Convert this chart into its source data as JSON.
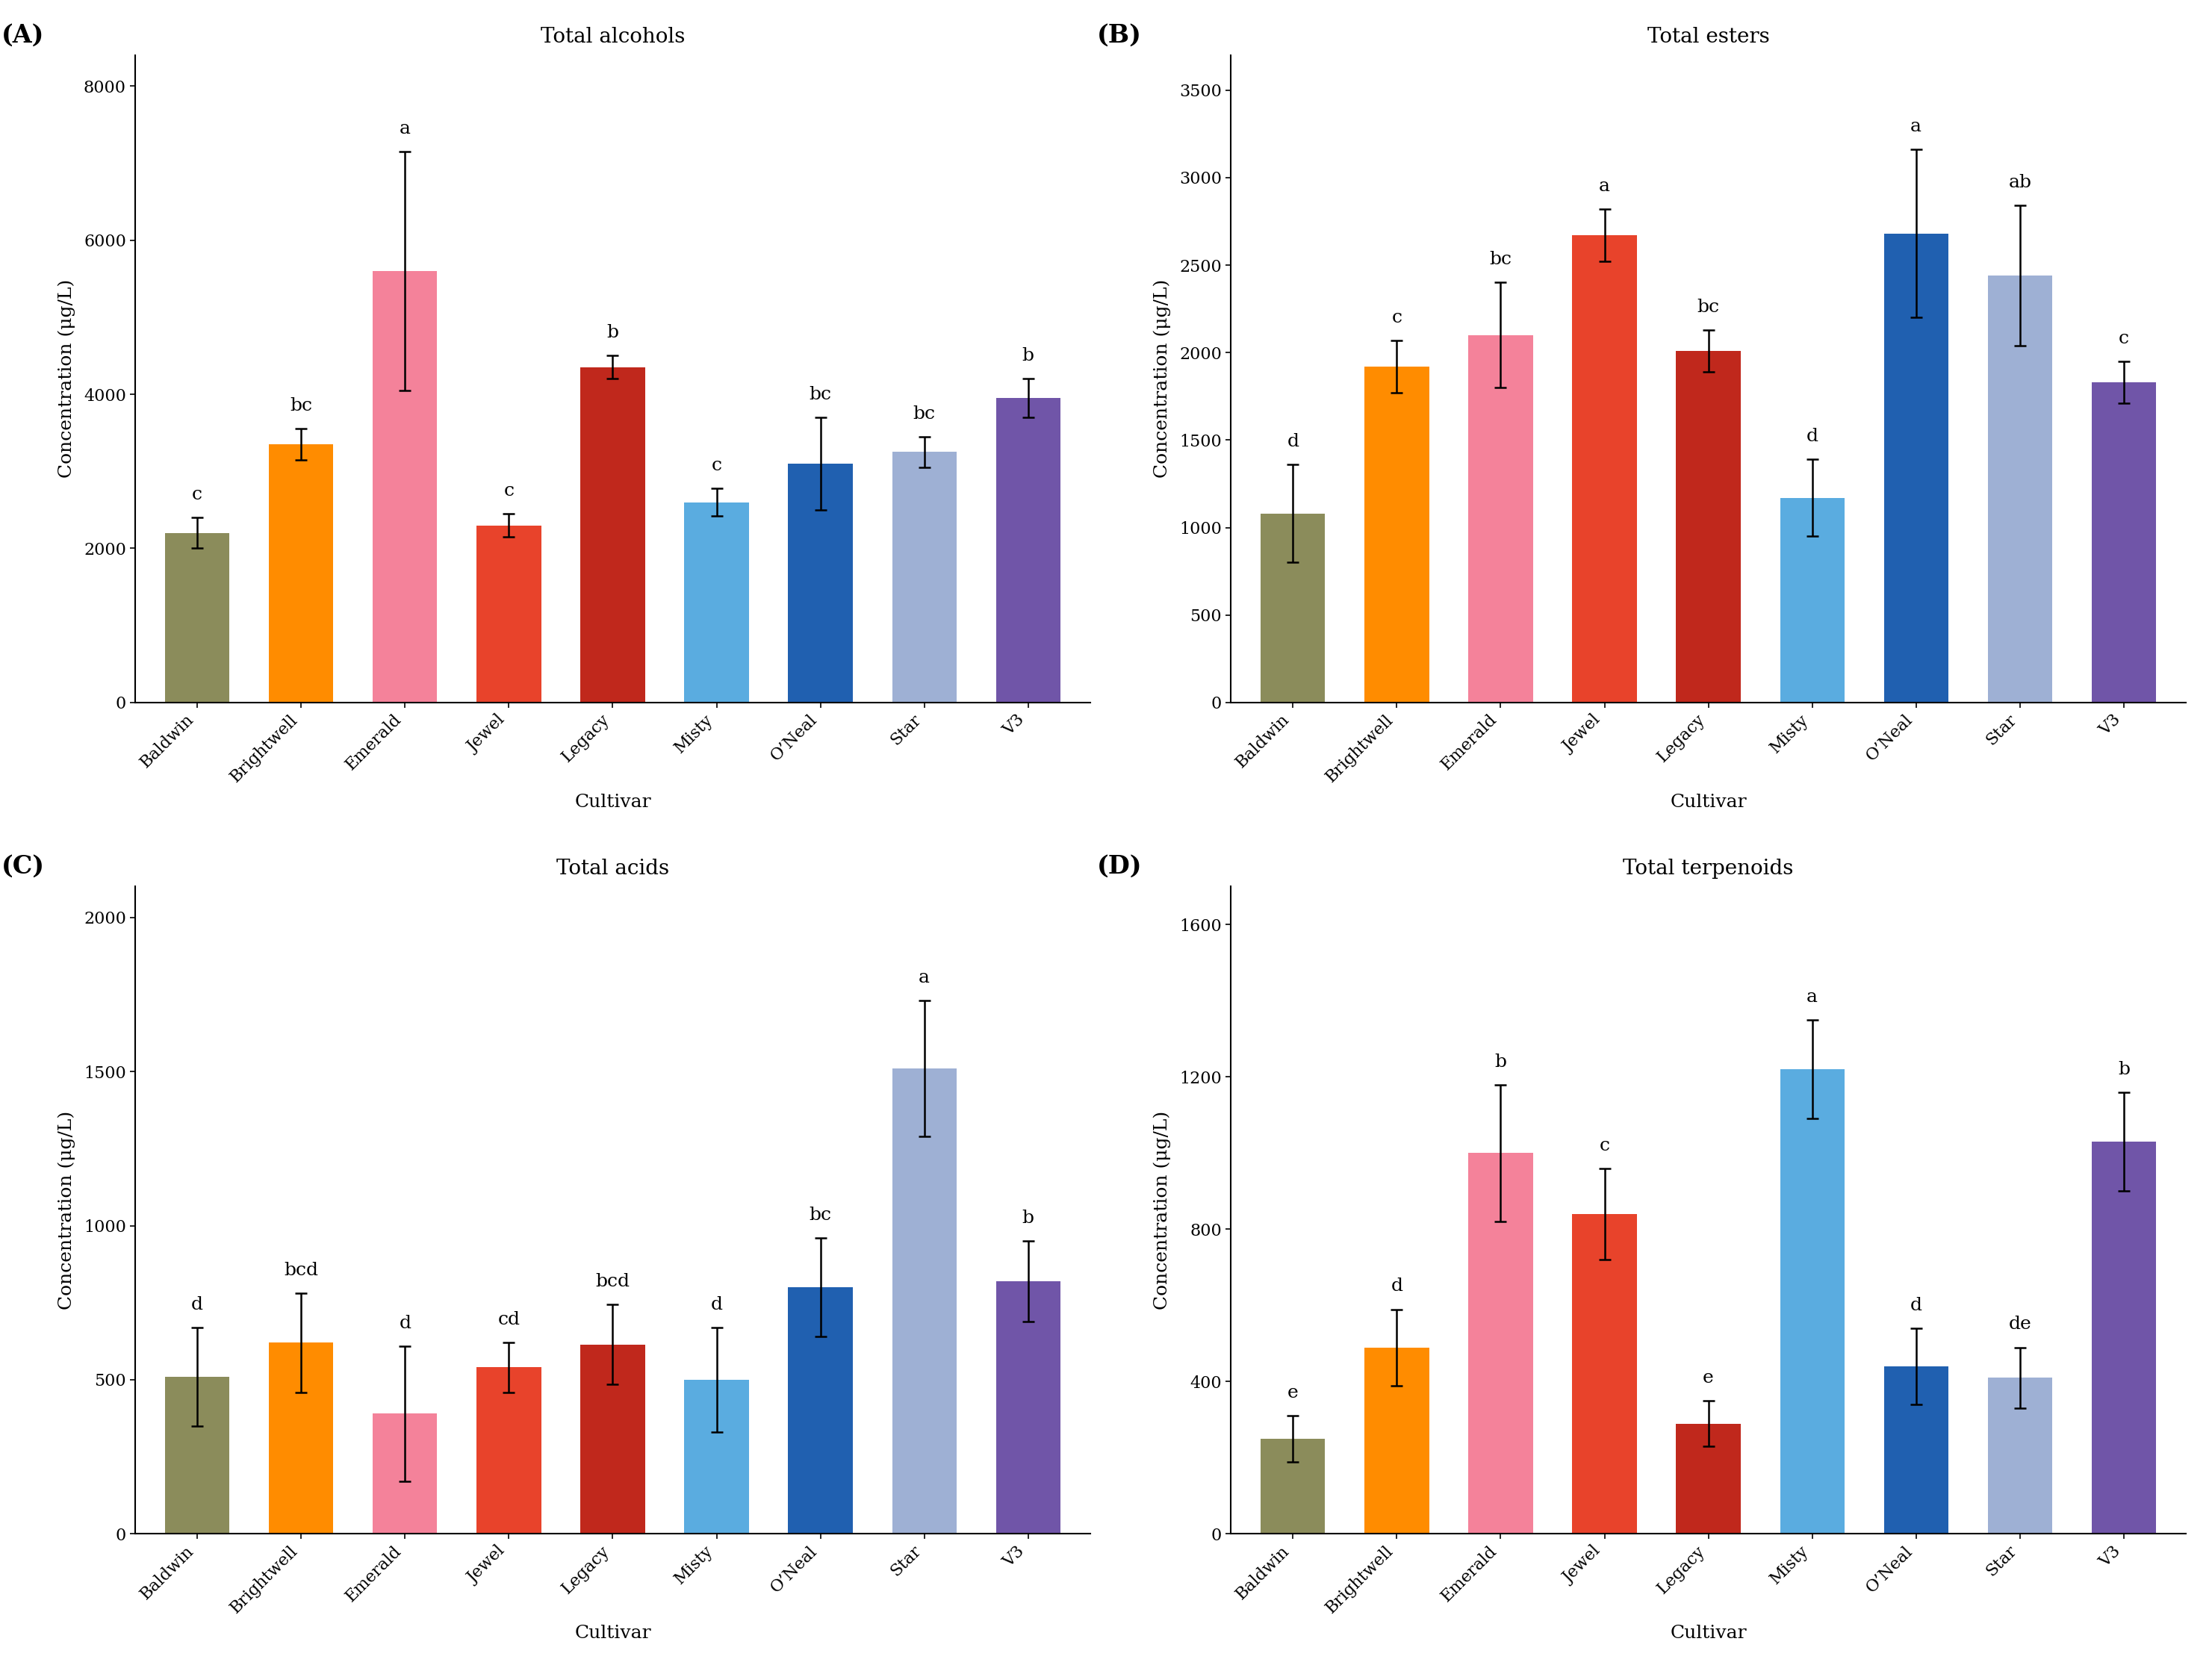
{
  "cultivars": [
    "Baldwin",
    "Brightwell",
    "Emerald",
    "Jewel",
    "Legacy",
    "Misty",
    "O’Neal",
    "Star",
    "V3"
  ],
  "panels": [
    {
      "label": "(A)",
      "title": "Total alcohols",
      "ylabel": "Concentration (μg/L)",
      "xlabel": "Cultivar",
      "ylim": [
        0,
        8400
      ],
      "yticks": [
        0,
        2000,
        4000,
        6000,
        8000
      ],
      "values": [
        2200,
        3350,
        5600,
        2300,
        4350,
        2600,
        3100,
        3250,
        3950
      ],
      "errors": [
        200,
        200,
        1550,
        150,
        150,
        180,
        600,
        200,
        250
      ],
      "letters": [
        "c",
        "bc",
        "a",
        "c",
        "b",
        "c",
        "bc",
        "bc",
        "b"
      ],
      "colors": [
        "#8B8C5B",
        "#FF8C00",
        "#F4829A",
        "#E8432B",
        "#C0281C",
        "#5AACE0",
        "#2060B0",
        "#9EB0D4",
        "#7055A8"
      ]
    },
    {
      "label": "(B)",
      "title": "Total esters",
      "ylabel": "Concentration (μg/L)",
      "xlabel": "Cultivar",
      "ylim": [
        0,
        3700
      ],
      "yticks": [
        0,
        500,
        1000,
        1500,
        2000,
        2500,
        3000,
        3500
      ],
      "values": [
        1080,
        1920,
        2100,
        2670,
        2010,
        1170,
        2680,
        2440,
        1830
      ],
      "errors": [
        280,
        150,
        300,
        150,
        120,
        220,
        480,
        400,
        120
      ],
      "letters": [
        "d",
        "c",
        "bc",
        "a",
        "bc",
        "d",
        "a",
        "ab",
        "c"
      ],
      "colors": [
        "#8B8C5B",
        "#FF8C00",
        "#F4829A",
        "#E8432B",
        "#C0281C",
        "#5AACE0",
        "#2060B0",
        "#9EB0D4",
        "#7055A8"
      ]
    },
    {
      "label": "(C)",
      "title": "Total acids",
      "ylabel": "Concentration (μg/L)",
      "xlabel": "Cultivar",
      "ylim": [
        0,
        2100
      ],
      "yticks": [
        0,
        500,
        1000,
        1500,
        2000
      ],
      "values": [
        510,
        620,
        390,
        540,
        615,
        500,
        800,
        1510,
        820
      ],
      "errors": [
        160,
        160,
        220,
        80,
        130,
        170,
        160,
        220,
        130
      ],
      "letters": [
        "d",
        "bcd",
        "d",
        "cd",
        "bcd",
        "d",
        "bc",
        "a",
        "b"
      ],
      "colors": [
        "#8B8C5B",
        "#FF8C00",
        "#F4829A",
        "#E8432B",
        "#C0281C",
        "#5AACE0",
        "#2060B0",
        "#9EB0D4",
        "#7055A8"
      ]
    },
    {
      "label": "(D)",
      "title": "Total terpenoids",
      "ylabel": "Concentration (μg/L)",
      "xlabel": "Cultivar",
      "ylim": [
        0,
        1700
      ],
      "yticks": [
        0,
        400,
        800,
        1200,
        1600
      ],
      "values": [
        250,
        490,
        1000,
        840,
        290,
        1220,
        440,
        410,
        1030
      ],
      "errors": [
        60,
        100,
        180,
        120,
        60,
        130,
        100,
        80,
        130
      ],
      "letters": [
        "e",
        "d",
        "b",
        "c",
        "e",
        "a",
        "d",
        "de",
        "b"
      ],
      "colors": [
        "#8B8C5B",
        "#FF8C00",
        "#F4829A",
        "#E8432B",
        "#C0281C",
        "#5AACE0",
        "#2060B0",
        "#9EB0D4",
        "#7055A8"
      ]
    }
  ],
  "figure_bg": "#FFFFFF",
  "bar_width": 0.62,
  "letter_fontsize": 18,
  "tick_fontsize": 16,
  "label_fontsize": 18,
  "title_fontsize": 20,
  "panel_label_fontsize": 24
}
